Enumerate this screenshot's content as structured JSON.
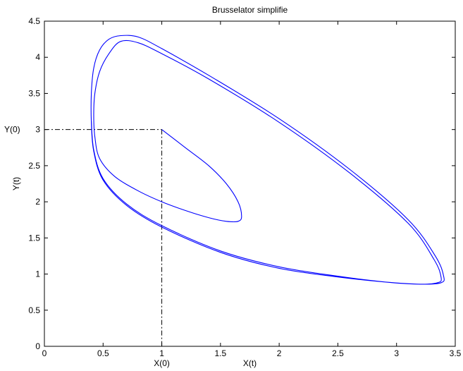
{
  "chart_data": {
    "type": "line",
    "title": "Brusselator simplifie",
    "xlabel": "X(t)",
    "ylabel": "Y(t)",
    "xlim": [
      0,
      3.5
    ],
    "ylim": [
      0,
      4.5
    ],
    "xticks": [
      0,
      0.5,
      1,
      1.5,
      2,
      2.5,
      3,
      3.5
    ],
    "xtick_labels": [
      "0",
      "0.5",
      "1",
      "1.5",
      "2",
      "2.5",
      "3",
      "3.5"
    ],
    "yticks": [
      0,
      0.5,
      1,
      1.5,
      2,
      2.5,
      3,
      3.5,
      4,
      4.5
    ],
    "ytick_labels": [
      "0",
      "0.5",
      "1",
      "1.5",
      "2",
      "2.5",
      "3",
      "3.5",
      "4",
      "4.5"
    ],
    "grid": false,
    "initial_point": {
      "x": 1,
      "y": 3,
      "x_label": "X(0)",
      "y_label": "Y(0)"
    },
    "series": [
      {
        "color": "#0000ff",
        "x": [
          1.0,
          1.2,
          1.4,
          1.55,
          1.65,
          1.68,
          1.65,
          1.55,
          1.4,
          1.2,
          1.0,
          0.8,
          0.6,
          0.47,
          0.43,
          0.42,
          0.43,
          0.47,
          0.55,
          0.65,
          0.8,
          1.0,
          1.4,
          2.0,
          2.6,
          3.1,
          3.32,
          3.38,
          3.35,
          3.2,
          2.9,
          2.5,
          2.0,
          1.5,
          1.0,
          0.7,
          0.5,
          0.42,
          0.4,
          0.4,
          0.42,
          0.47,
          0.55,
          0.65,
          0.8,
          1.0,
          1.4,
          2.0,
          2.6,
          3.1,
          3.33,
          3.4,
          3.38,
          3.2,
          2.9,
          2.5,
          2.0,
          1.5,
          1.0,
          0.7,
          0.5,
          0.42,
          0.4
        ],
        "y": [
          3.0,
          2.75,
          2.5,
          2.25,
          2.0,
          1.8,
          1.73,
          1.73,
          1.78,
          1.88,
          2.0,
          2.15,
          2.35,
          2.6,
          2.9,
          3.2,
          3.5,
          3.8,
          4.05,
          4.22,
          4.2,
          4.05,
          3.7,
          3.1,
          2.4,
          1.7,
          1.2,
          0.95,
          0.88,
          0.86,
          0.89,
          0.96,
          1.08,
          1.3,
          1.65,
          1.95,
          2.3,
          2.7,
          3.1,
          3.5,
          3.85,
          4.1,
          4.25,
          4.3,
          4.28,
          4.12,
          3.75,
          3.15,
          2.45,
          1.75,
          1.25,
          0.98,
          0.88,
          0.86,
          0.89,
          0.97,
          1.1,
          1.32,
          1.67,
          1.97,
          2.32,
          2.72,
          3.12
        ]
      }
    ]
  }
}
